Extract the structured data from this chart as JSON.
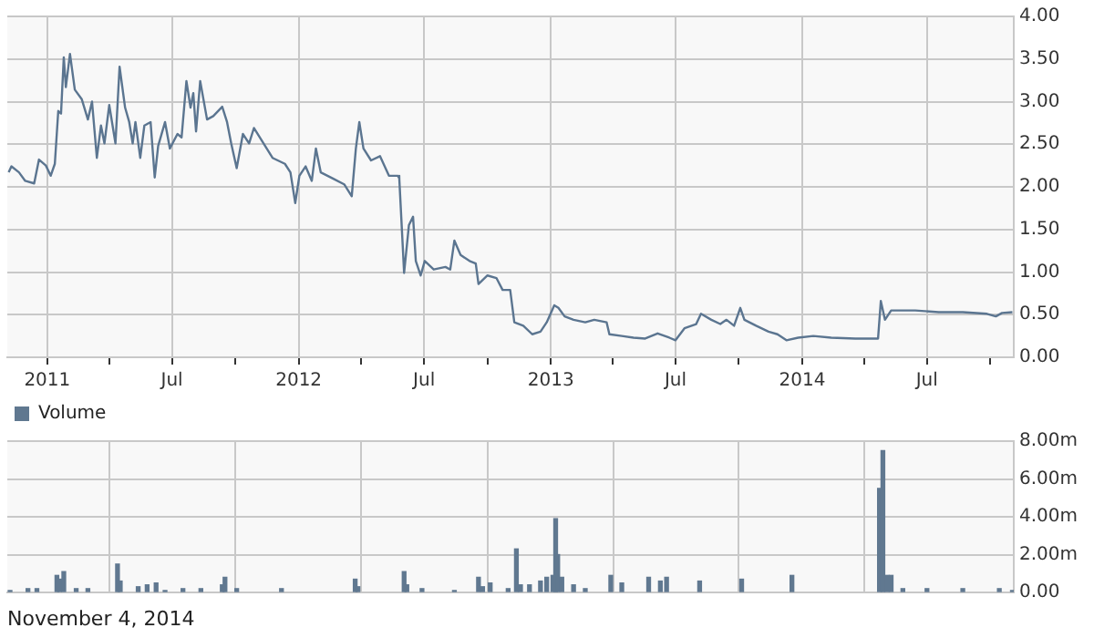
{
  "chart_data": [
    {
      "type": "line",
      "color": "#5b7590",
      "x": [
        "2010-11-06",
        "2010-11-10",
        "2010-11-21",
        "2010-11-30",
        "2010-12-13",
        "2010-12-20",
        "2010-12-30",
        "2011-01-06",
        "2011-01-12",
        "2011-01-17",
        "2011-01-21",
        "2011-01-25",
        "2011-01-28",
        "2011-02-03",
        "2011-02-10",
        "2011-02-20",
        "2011-03-01",
        "2011-03-07",
        "2011-03-14",
        "2011-03-20",
        "2011-03-25",
        "2011-04-01",
        "2011-04-10",
        "2011-04-16",
        "2011-04-24",
        "2011-04-30",
        "2011-05-05",
        "2011-05-09",
        "2011-05-16",
        "2011-05-22",
        "2011-05-31",
        "2011-06-06",
        "2011-06-11",
        "2011-06-21",
        "2011-06-28",
        "2011-07-09",
        "2011-07-15",
        "2011-07-22",
        "2011-07-28",
        "2011-08-01",
        "2011-08-05",
        "2011-08-11",
        "2011-08-21",
        "2011-08-30",
        "2011-09-12",
        "2011-09-19",
        "2011-09-25",
        "2011-10-03",
        "2011-10-12",
        "2011-10-21",
        "2011-10-28",
        "2011-11-11",
        "2011-11-24",
        "2011-12-12",
        "2011-12-20",
        "2011-12-27",
        "2012-01-02",
        "2012-01-11",
        "2012-01-20",
        "2012-01-26",
        "2012-02-02",
        "2012-02-19",
        "2012-03-07",
        "2012-03-18",
        "2012-03-24",
        "2012-03-29",
        "2012-04-04",
        "2012-04-15",
        "2012-04-28",
        "2012-05-11",
        "2012-05-24",
        "2012-05-26",
        "2012-06-02",
        "2012-06-09",
        "2012-06-15",
        "2012-06-19",
        "2012-06-26",
        "2012-07-02",
        "2012-07-15",
        "2012-08-01",
        "2012-08-08",
        "2012-08-14",
        "2012-08-23",
        "2012-09-05",
        "2012-09-14",
        "2012-09-18",
        "2012-10-01",
        "2012-10-14",
        "2012-10-23",
        "2012-11-03",
        "2012-11-09",
        "2012-11-22",
        "2012-12-05",
        "2012-12-17",
        "2012-12-26",
        "2013-01-06",
        "2013-01-12",
        "2013-01-21",
        "2013-02-03",
        "2013-02-20",
        "2013-03-05",
        "2013-03-23",
        "2013-03-27",
        "2013-04-14",
        "2013-05-01",
        "2013-05-18",
        "2013-06-05",
        "2013-06-22",
        "2013-07-01",
        "2013-07-14",
        "2013-07-31",
        "2013-08-07",
        "2013-08-22",
        "2013-09-04",
        "2013-09-13",
        "2013-09-24",
        "2013-10-03",
        "2013-10-09",
        "2013-10-26",
        "2013-11-13",
        "2013-11-26",
        "2013-12-09",
        "2013-12-26",
        "2014-01-17",
        "2014-02-12",
        "2014-03-19",
        "2014-04-21",
        "2014-04-25",
        "2014-05-01",
        "2014-05-10",
        "2014-05-27",
        "2014-06-14",
        "2014-07-18",
        "2014-08-22",
        "2014-09-26",
        "2014-10-09",
        "2014-10-18",
        "2014-11-02"
      ],
      "values": [
        2.17,
        2.24,
        2.17,
        2.07,
        2.04,
        2.32,
        2.25,
        2.13,
        2.27,
        2.89,
        2.86,
        3.52,
        3.17,
        3.56,
        3.14,
        3.03,
        2.79,
        3.0,
        2.34,
        2.72,
        2.51,
        2.96,
        2.51,
        3.41,
        2.93,
        2.76,
        2.51,
        2.76,
        2.34,
        2.72,
        2.76,
        2.11,
        2.48,
        2.76,
        2.45,
        2.62,
        2.58,
        3.24,
        2.93,
        3.1,
        2.65,
        3.24,
        2.79,
        2.83,
        2.94,
        2.76,
        2.51,
        2.22,
        2.62,
        2.51,
        2.69,
        2.51,
        2.34,
        2.27,
        2.17,
        1.81,
        2.13,
        2.24,
        2.07,
        2.45,
        2.17,
        2.1,
        2.03,
        1.89,
        2.45,
        2.76,
        2.45,
        2.31,
        2.36,
        2.13,
        2.13,
        2.1,
        0.99,
        1.55,
        1.65,
        1.13,
        0.96,
        1.13,
        1.03,
        1.06,
        1.03,
        1.37,
        1.2,
        1.13,
        1.1,
        0.86,
        0.96,
        0.93,
        0.79,
        0.79,
        0.41,
        0.37,
        0.27,
        0.3,
        0.41,
        0.61,
        0.58,
        0.48,
        0.44,
        0.41,
        0.44,
        0.41,
        0.27,
        0.25,
        0.23,
        0.22,
        0.28,
        0.23,
        0.2,
        0.34,
        0.39,
        0.51,
        0.44,
        0.39,
        0.44,
        0.37,
        0.58,
        0.44,
        0.37,
        0.3,
        0.27,
        0.2,
        0.23,
        0.25,
        0.23,
        0.22,
        0.22,
        0.66,
        0.44,
        0.55,
        0.55,
        0.55,
        0.53,
        0.53,
        0.51,
        0.48,
        0.52,
        0.53
      ],
      "xlim": [
        "2010-11-04",
        "2014-11-04"
      ],
      "xticks": [
        {
          "value": "2011-01-01",
          "label": "2011"
        },
        {
          "value": "2011-04-01",
          "label": null
        },
        {
          "value": "2011-07-01",
          "label": "Jul"
        },
        {
          "value": "2011-10-01",
          "label": null
        },
        {
          "value": "2012-01-01",
          "label": "2012"
        },
        {
          "value": "2012-04-01",
          "label": null
        },
        {
          "value": "2012-07-01",
          "label": "Jul"
        },
        {
          "value": "2012-10-01",
          "label": null
        },
        {
          "value": "2013-01-01",
          "label": "2013"
        },
        {
          "value": "2013-04-01",
          "label": null
        },
        {
          "value": "2013-07-01",
          "label": "Jul"
        },
        {
          "value": "2013-10-01",
          "label": null
        },
        {
          "value": "2014-01-01",
          "label": "2014"
        },
        {
          "value": "2014-04-01",
          "label": null
        },
        {
          "value": "2014-07-01",
          "label": "Jul"
        },
        {
          "value": "2014-10-01",
          "label": null
        }
      ],
      "ylim": [
        0,
        4
      ],
      "yticks": [
        {
          "value": 0,
          "label": "0.00"
        },
        {
          "value": 0.5,
          "label": "0.50"
        },
        {
          "value": 1,
          "label": "1.00"
        },
        {
          "value": 1.5,
          "label": "1.50"
        },
        {
          "value": 2,
          "label": "2.00"
        },
        {
          "value": 2.5,
          "label": "2.50"
        },
        {
          "value": 3,
          "label": "3.00"
        },
        {
          "value": 3.5,
          "label": "3.50"
        },
        {
          "value": 4,
          "label": "4.00"
        }
      ],
      "grid": true
    },
    {
      "type": "bar",
      "x": [
        "2010-11-08",
        "2010-12-04",
        "2010-12-17",
        "2011-01-15",
        "2011-01-19",
        "2011-01-25",
        "2011-02-12",
        "2011-03-01",
        "2011-04-13",
        "2011-04-17",
        "2011-05-13",
        "2011-05-26",
        "2011-06-08",
        "2011-06-21",
        "2011-07-17",
        "2011-08-12",
        "2011-09-12",
        "2011-09-16",
        "2011-10-03",
        "2011-12-07",
        "2012-03-23",
        "2012-03-27",
        "2012-06-02",
        "2012-06-06",
        "2012-06-28",
        "2012-08-14",
        "2012-09-18",
        "2012-09-24",
        "2012-10-05",
        "2012-10-31",
        "2012-11-12",
        "2012-11-18",
        "2012-12-01",
        "2012-12-17",
        "2012-12-26",
        "2013-01-04",
        "2013-01-08",
        "2013-01-11",
        "2013-01-17",
        "2013-02-03",
        "2013-02-20",
        "2013-03-29",
        "2013-04-14",
        "2013-05-23",
        "2013-06-09",
        "2013-06-18",
        "2013-08-05",
        "2013-10-05",
        "2013-12-17",
        "2014-04-23",
        "2014-04-28",
        "2014-05-04",
        "2014-05-10",
        "2014-05-27",
        "2014-07-01",
        "2014-08-22",
        "2014-10-14",
        "2014-11-02"
      ],
      "series": [
        {
          "name": "Volume",
          "color": "#607890",
          "values": [
            0.1,
            0.2,
            0.2,
            0.9,
            0.7,
            1.1,
            0.2,
            0.2,
            1.5,
            0.6,
            0.3,
            0.4,
            0.5,
            0.1,
            0.2,
            0.2,
            0.4,
            0.8,
            0.2,
            0.2,
            0.7,
            0.3,
            1.1,
            0.4,
            0.2,
            0.1,
            0.8,
            0.3,
            0.5,
            0.2,
            2.3,
            0.4,
            0.4,
            0.6,
            0.8,
            0.9,
            3.9,
            2.0,
            0.8,
            0.4,
            0.2,
            0.9,
            0.5,
            0.8,
            0.6,
            0.8,
            0.6,
            0.7,
            0.9,
            5.5,
            7.5,
            0.9,
            0.9,
            0.2,
            0.2,
            0.2,
            0.2,
            0.1
          ]
        }
      ],
      "xlim": [
        "2010-11-04",
        "2014-11-04"
      ],
      "xticks": [
        "2011-01-01",
        "2011-07-01",
        "2012-01-01",
        "2012-07-01",
        "2013-01-01",
        "2013-07-01",
        "2014-01-01",
        "2014-07-01"
      ],
      "ylim": [
        0,
        8
      ],
      "yticks": [
        {
          "value": 0,
          "label": "0.00"
        },
        {
          "value": 2,
          "label": "2.00m"
        },
        {
          "value": 4,
          "label": "4.00m"
        },
        {
          "value": 6,
          "label": "6.00m"
        },
        {
          "value": 8,
          "label": "8.00m"
        }
      ],
      "tick_labels": "y",
      "grid": true,
      "legend": "top left",
      "annotations": [
        "November 4, 2014"
      ]
    }
  ]
}
